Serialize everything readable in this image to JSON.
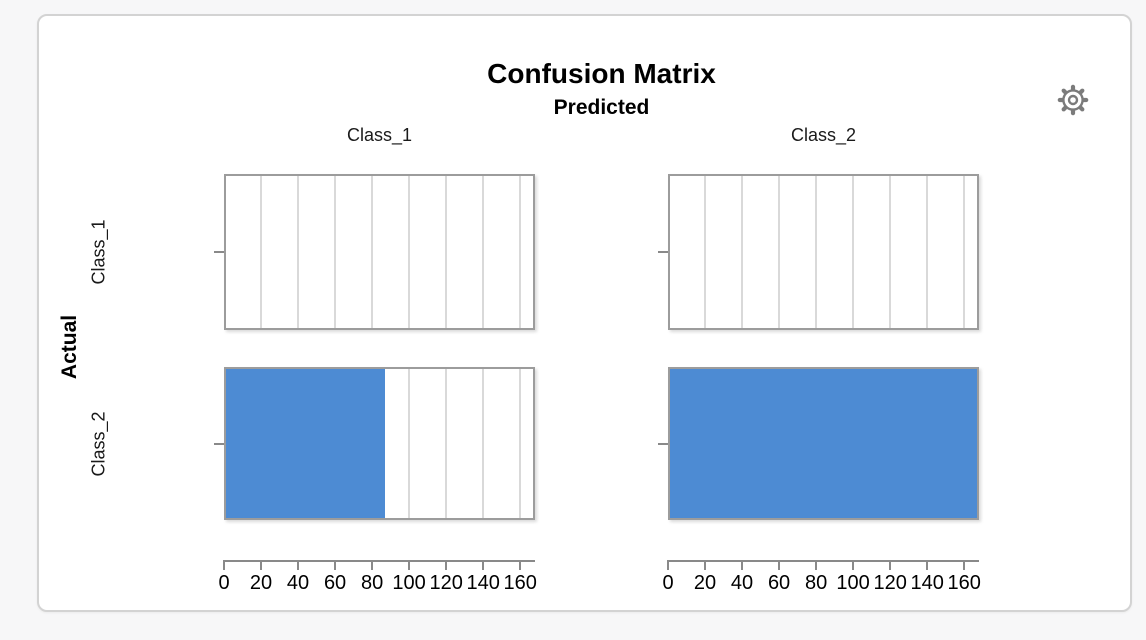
{
  "theme": {
    "page_background": "#f7f7f8",
    "card_background": "#ffffff",
    "accent_bar_color": "#4d8bd3"
  },
  "header": {
    "settings_icon": "gear-icon"
  },
  "chart_data": {
    "type": "bar",
    "title": "Confusion Matrix",
    "col_axis_title": "Predicted",
    "row_axis_title": "Actual",
    "columns": [
      "Class_1",
      "Class_2"
    ],
    "rows": [
      "Class_1",
      "Class_2"
    ],
    "counts": [
      [
        0,
        0
      ],
      [
        87,
        168
      ]
    ],
    "xlabel": "",
    "ylabel": "",
    "xlim": [
      0,
      168
    ],
    "xticks": [
      0,
      20,
      40,
      60,
      80,
      100,
      120,
      140,
      160
    ],
    "bar_color": "#4d8bd3",
    "grid": true,
    "orientation": "horizontal",
    "legend": "none"
  }
}
